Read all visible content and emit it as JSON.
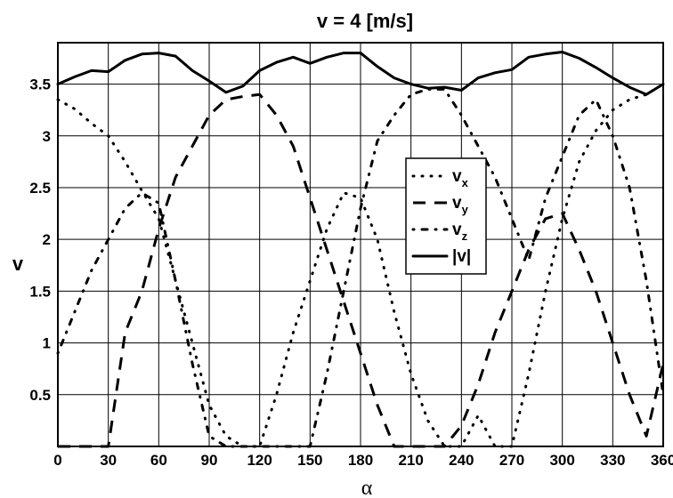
{
  "chart_data": {
    "type": "line",
    "title": "v = 4 [m/s]",
    "xlabel": "α",
    "ylabel": "v",
    "xlim": [
      0,
      360
    ],
    "ylim": [
      0,
      3.9
    ],
    "xticks": [
      "0",
      "30",
      "60",
      "90",
      "120",
      "150",
      "180",
      "210",
      "240",
      "270",
      "300",
      "330",
      "360"
    ],
    "yticks": [
      "0.5",
      "1",
      "1.5",
      "2",
      "2.5",
      "3",
      "3.5"
    ],
    "grid": true,
    "legend_position": "center-right",
    "x": [
      0,
      10,
      20,
      30,
      40,
      50,
      60,
      70,
      80,
      90,
      100,
      110,
      120,
      130,
      140,
      150,
      160,
      170,
      180,
      190,
      200,
      210,
      220,
      230,
      240,
      250,
      260,
      270,
      280,
      290,
      300,
      310,
      320,
      330,
      340,
      350,
      360
    ],
    "series": [
      {
        "name": "v",
        "sub": "x",
        "style": "dotted",
        "values": [
          3.35,
          3.26,
          3.12,
          3.0,
          2.75,
          2.47,
          2.2,
          1.6,
          1.0,
          0.4,
          0.1,
          0.0,
          0.0,
          0.5,
          1.1,
          1.6,
          2.1,
          2.45,
          2.4,
          2.0,
          1.3,
          0.7,
          0.25,
          0.0,
          0.0,
          0.3,
          0.0,
          0.0,
          0.7,
          1.5,
          2.2,
          2.75,
          3.05,
          3.25,
          3.35,
          3.4,
          3.5
        ]
      },
      {
        "name": "v",
        "sub": "y",
        "style": "dashed",
        "values": [
          0.0,
          0.0,
          0.0,
          0.0,
          1.1,
          1.5,
          2.1,
          2.6,
          2.9,
          3.2,
          3.35,
          3.38,
          3.4,
          3.2,
          2.9,
          2.4,
          1.9,
          1.4,
          0.9,
          0.4,
          0.0,
          0.0,
          0.0,
          0.0,
          0.2,
          0.6,
          1.1,
          1.5,
          1.9,
          2.2,
          2.25,
          1.9,
          1.5,
          1.0,
          0.5,
          0.1,
          0.8
        ]
      },
      {
        "name": "v",
        "sub": "z",
        "style": "dashdot",
        "values": [
          0.9,
          1.3,
          1.7,
          2.0,
          2.3,
          2.45,
          2.35,
          1.6,
          0.8,
          0.1,
          0.0,
          0.0,
          0.0,
          0.0,
          0.0,
          0.0,
          0.7,
          1.5,
          2.3,
          2.95,
          3.2,
          3.4,
          3.45,
          3.45,
          3.2,
          2.9,
          2.6,
          2.2,
          1.8,
          2.4,
          2.8,
          3.2,
          3.35,
          3.0,
          2.5,
          1.6,
          0.5
        ]
      },
      {
        "name": "|v|",
        "sub": "",
        "style": "solid",
        "values": [
          3.5,
          3.57,
          3.63,
          3.62,
          3.73,
          3.79,
          3.8,
          3.77,
          3.63,
          3.53,
          3.42,
          3.48,
          3.63,
          3.71,
          3.76,
          3.7,
          3.76,
          3.8,
          3.8,
          3.67,
          3.56,
          3.5,
          3.46,
          3.47,
          3.44,
          3.56,
          3.61,
          3.64,
          3.76,
          3.79,
          3.81,
          3.75,
          3.66,
          3.56,
          3.47,
          3.4,
          3.5
        ]
      }
    ]
  }
}
